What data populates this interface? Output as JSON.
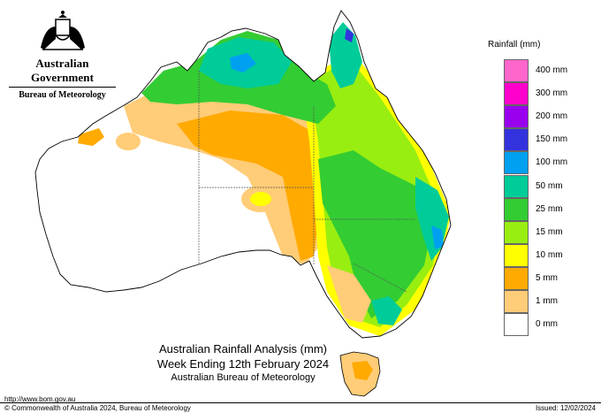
{
  "header": {
    "government": "Australian Government",
    "bureau": "Bureau of Meteorology"
  },
  "legend": {
    "title": "Rainfall (mm)",
    "items": [
      {
        "label": "400 mm",
        "color": "#ff66cc"
      },
      {
        "label": "300 mm",
        "color": "#ff00cc"
      },
      {
        "label": "200 mm",
        "color": "#9900ee"
      },
      {
        "label": "150 mm",
        "color": "#3333dd"
      },
      {
        "label": "100 mm",
        "color": "#00a0f0"
      },
      {
        "label": "50 mm",
        "color": "#00cc99"
      },
      {
        "label": "25 mm",
        "color": "#33cc33"
      },
      {
        "label": "15 mm",
        "color": "#99ee11"
      },
      {
        "label": "10 mm",
        "color": "#ffff00"
      },
      {
        "label": "5 mm",
        "color": "#ffaa00"
      },
      {
        "label": "1 mm",
        "color": "#ffcc77"
      },
      {
        "label": "0 mm",
        "color": "#ffffff"
      }
    ]
  },
  "title": {
    "line1": "Australian Rainfall Analysis (mm)",
    "line2": "Week Ending 12th February 2024",
    "line3": "Australian Bureau of Meteorology"
  },
  "footer": {
    "url": "http://www.bom.gov.au",
    "copyright": "© Commonwealth of Australia 2024, Bureau of Meteorology",
    "issued": "Issued: 12/02/2024"
  }
}
